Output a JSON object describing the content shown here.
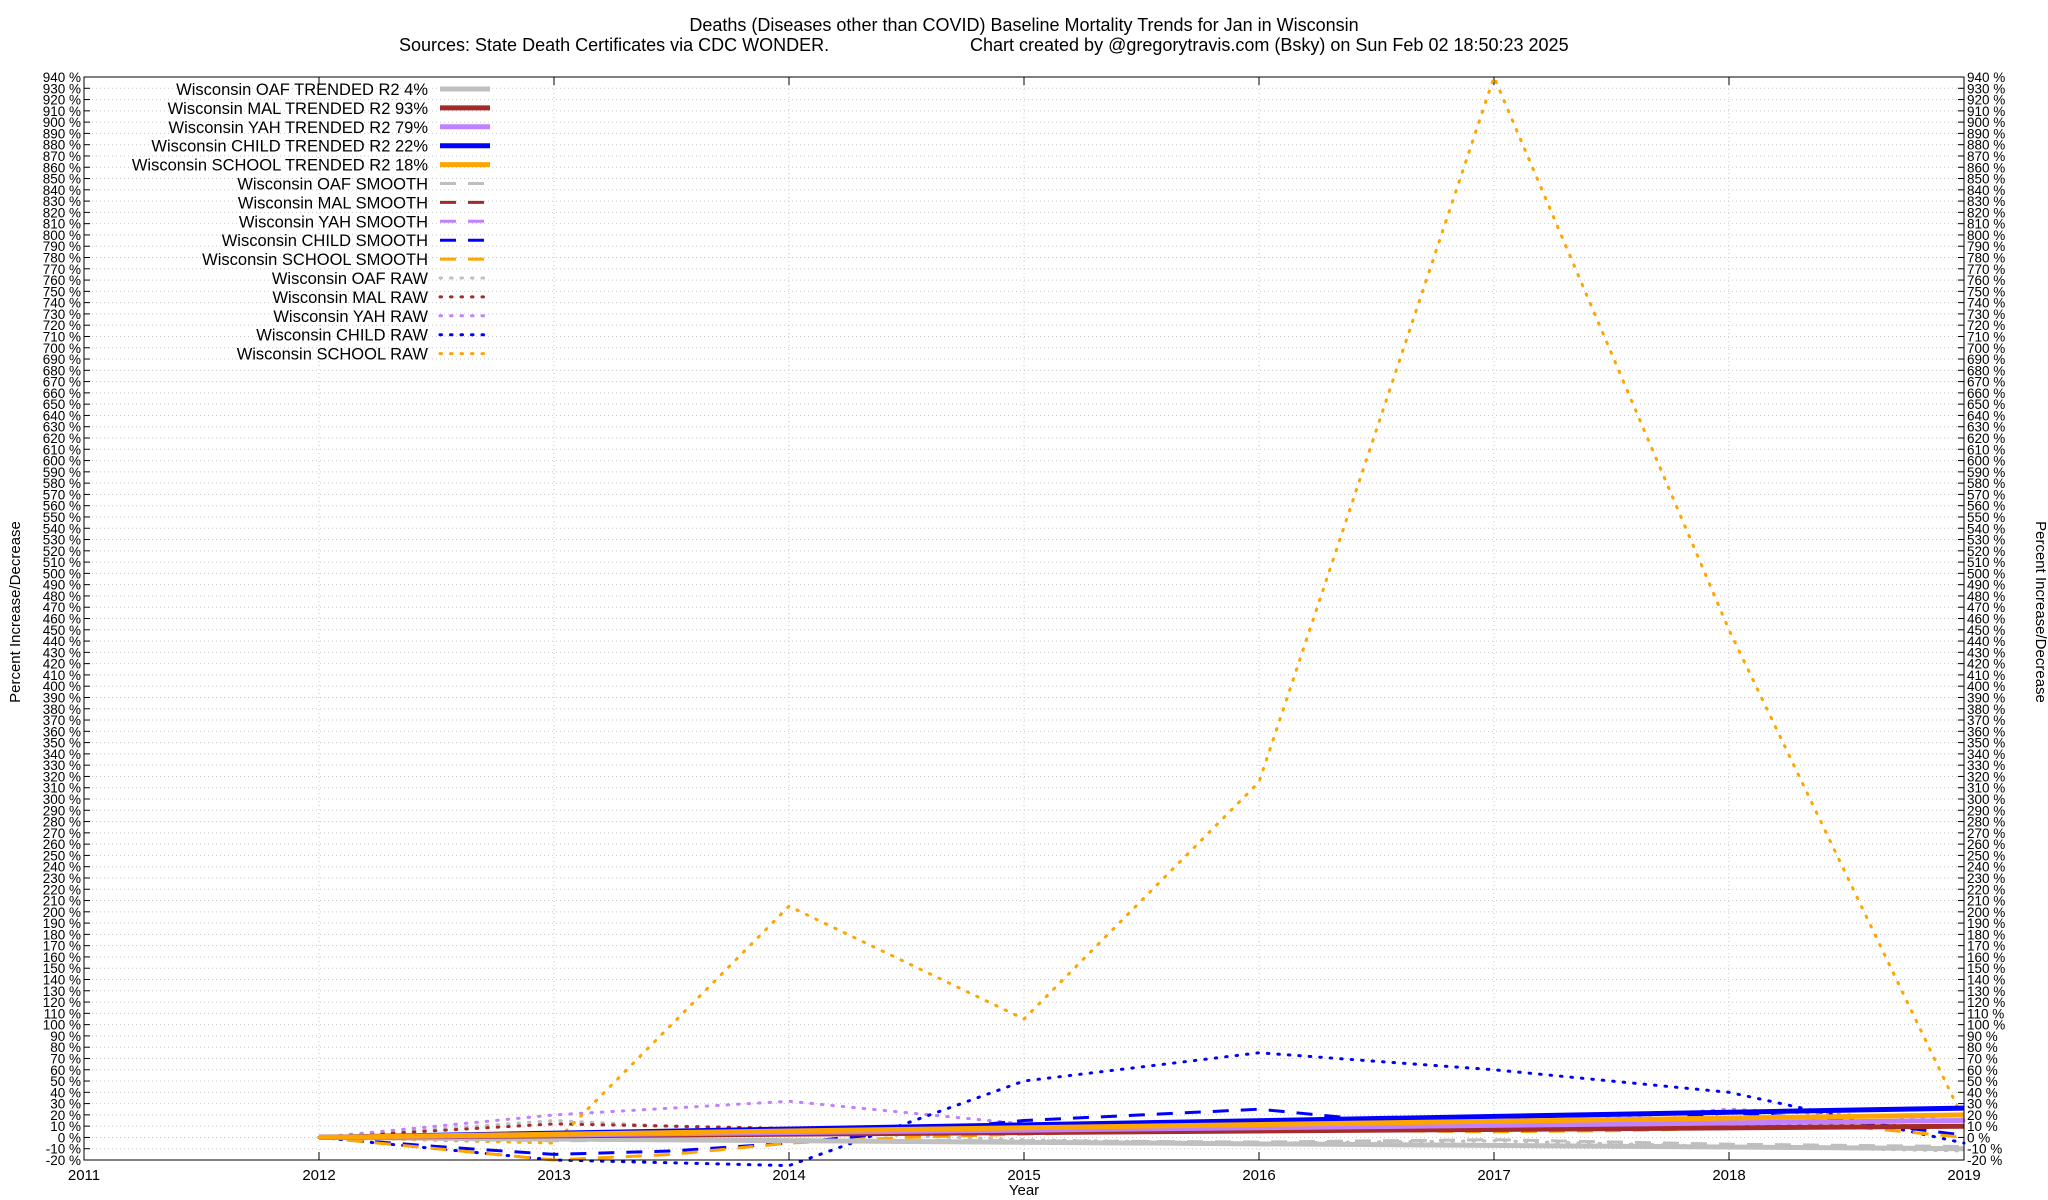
{
  "chart_data": {
    "type": "line",
    "title": "Deaths (Diseases other than COVID)  Baseline Mortality Trends for Jan in Wisconsin",
    "subtitle_left": "Sources: State Death Certificates via CDC WONDER.",
    "subtitle_right": "Chart created by @gregorytravis.com (Bsky) on Sun Feb 02 18:50:23 2025",
    "xlabel": "Year",
    "ylabel": "Percent Increase/Decrease",
    "y2label": "Percent Increase/Decrease",
    "xlim": [
      2011,
      2019
    ],
    "ylim": [
      -20,
      940
    ],
    "x_ticks": [
      "2011",
      "2012",
      "2013",
      "2014",
      "2015",
      "2016",
      "2017",
      "2018",
      "2019"
    ],
    "y_tick_step": 10,
    "y_tick_suffix": " %",
    "grid": true,
    "legend_position": "top-left",
    "series": [
      {
        "name": "Wisconsin OAF TRENDED R2  4%",
        "style": "solid",
        "color": "#bfbfbf",
        "width": 5,
        "x": [
          2012,
          2019
        ],
        "values": [
          0,
          -10
        ]
      },
      {
        "name": "Wisconsin MAL TRENDED R2  93%",
        "style": "solid",
        "color": "#a52a2a",
        "width": 5,
        "x": [
          2012,
          2019
        ],
        "values": [
          0,
          10
        ]
      },
      {
        "name": "Wisconsin YAH TRENDED R2  79%",
        "style": "solid",
        "color": "#c080ff",
        "width": 5,
        "x": [
          2012,
          2019
        ],
        "values": [
          0,
          15
        ]
      },
      {
        "name": "Wisconsin CHILD TRENDED R2  22%",
        "style": "solid",
        "color": "#0000ff",
        "width": 5,
        "x": [
          2012,
          2019
        ],
        "values": [
          0,
          26
        ]
      },
      {
        "name": "Wisconsin SCHOOL TRENDED R2  18%",
        "style": "solid",
        "color": "#ffa500",
        "width": 5,
        "x": [
          2012,
          2019
        ],
        "values": [
          0,
          20
        ]
      },
      {
        "name": "Wisconsin OAF SMOOTH",
        "style": "dashed",
        "color": "#bfbfbf",
        "width": 3,
        "x": [
          2012,
          2013,
          2014,
          2015,
          2016,
          2017,
          2018,
          2019
        ],
        "values": [
          0,
          -3,
          -2,
          -3,
          -4,
          -2,
          -6,
          -8
        ]
      },
      {
        "name": "Wisconsin MAL SMOOTH",
        "style": "dashed",
        "color": "#a52a2a",
        "width": 3,
        "x": [
          2012,
          2013,
          2014,
          2015,
          2016,
          2017,
          2018,
          2019
        ],
        "values": [
          0,
          2,
          3,
          4,
          6,
          7,
          8,
          10
        ]
      },
      {
        "name": "Wisconsin YAH SMOOTH",
        "style": "dashed",
        "color": "#c080ff",
        "width": 3,
        "x": [
          2012,
          2013,
          2014,
          2015,
          2016,
          2017,
          2018,
          2019
        ],
        "values": [
          0,
          4,
          5,
          8,
          10,
          12,
          14,
          15
        ]
      },
      {
        "name": "Wisconsin CHILD SMOOTH",
        "style": "dashed",
        "color": "#0000ff",
        "width": 3,
        "x": [
          2012,
          2012.5,
          2013,
          2013.5,
          2014,
          2014.5,
          2015,
          2015.5,
          2016,
          2016.5,
          2017,
          2017.5,
          2018,
          2018.5,
          2019
        ],
        "values": [
          0,
          -8,
          -15,
          -12,
          -5,
          5,
          15,
          20,
          25,
          15,
          8,
          12,
          22,
          15,
          2
        ]
      },
      {
        "name": "Wisconsin SCHOOL SMOOTH",
        "style": "dashed",
        "color": "#ffa500",
        "width": 3,
        "x": [
          2012,
          2012.5,
          2013,
          2013.5,
          2014,
          2014.5,
          2015,
          2015.5,
          2016,
          2016.5,
          2017,
          2017.5,
          2018,
          2018.5,
          2019
        ],
        "values": [
          0,
          -10,
          -20,
          -15,
          -5,
          0,
          3,
          5,
          8,
          6,
          5,
          6,
          8,
          10,
          0
        ]
      },
      {
        "name": "Wisconsin OAF RAW",
        "style": "dotted",
        "color": "#bfbfbf",
        "width": 3,
        "x": [
          2012,
          2013,
          2014,
          2015,
          2016,
          2017,
          2018,
          2019
        ],
        "values": [
          0,
          15,
          5,
          -2,
          -5,
          -3,
          -8,
          -12
        ]
      },
      {
        "name": "Wisconsin MAL RAW",
        "style": "dotted",
        "color": "#a52a2a",
        "width": 3,
        "x": [
          2012,
          2013,
          2014,
          2015,
          2016,
          2017,
          2018,
          2019
        ],
        "values": [
          0,
          12,
          8,
          5,
          10,
          8,
          12,
          10
        ]
      },
      {
        "name": "Wisconsin YAH RAW",
        "style": "dotted",
        "color": "#c080ff",
        "width": 3,
        "x": [
          2012,
          2013,
          2014,
          2015,
          2016,
          2017,
          2018,
          2019
        ],
        "values": [
          0,
          20,
          32,
          12,
          15,
          10,
          25,
          15
        ]
      },
      {
        "name": "Wisconsin CHILD RAW",
        "style": "dotted",
        "color": "#0000ff",
        "width": 3,
        "x": [
          2012,
          2013,
          2014,
          2015,
          2016,
          2017,
          2018,
          2019
        ],
        "values": [
          0,
          -20,
          -25,
          50,
          75,
          60,
          40,
          -5
        ]
      },
      {
        "name": "Wisconsin SCHOOL RAW",
        "style": "dotted",
        "color": "#ffa500",
        "width": 3,
        "x": [
          2012,
          2013,
          2014,
          2015,
          2016,
          2017,
          2018,
          2019
        ],
        "values": [
          0,
          -5,
          205,
          105,
          315,
          940,
          450,
          15
        ]
      }
    ]
  }
}
